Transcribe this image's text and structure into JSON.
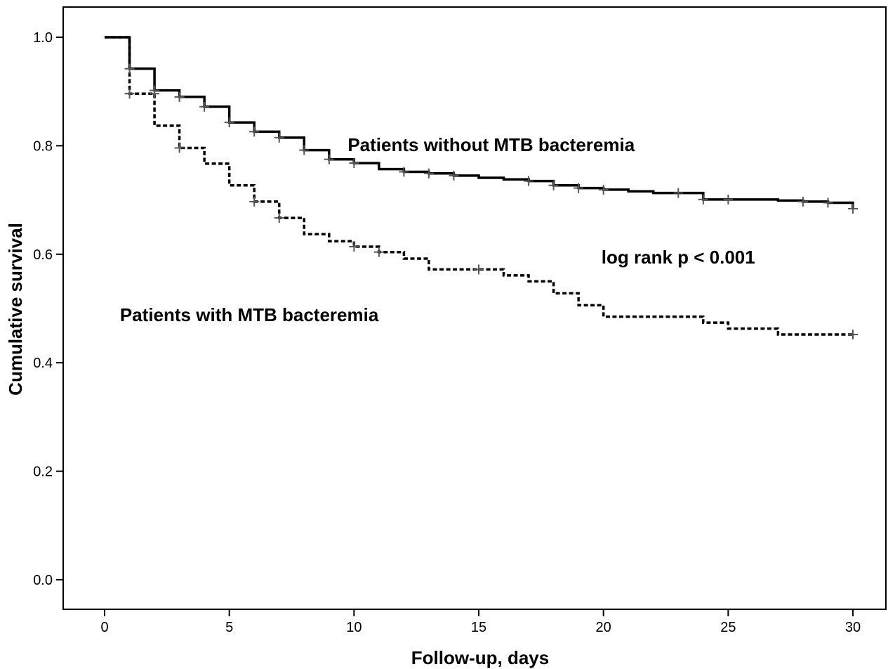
{
  "chart_data": {
    "type": "line",
    "subtype": "kaplan-meier-step",
    "title": "",
    "xlabel": "Follow-up, days",
    "ylabel": "Cumulative survival",
    "xlim": [
      0,
      30
    ],
    "ylim": [
      0.0,
      1.0
    ],
    "xticks": [
      "0",
      "5",
      "10",
      "15",
      "20",
      "25",
      "30"
    ],
    "yticks": [
      "0.0",
      "0.2",
      "0.4",
      "0.6",
      "0.8",
      "1.0"
    ],
    "grid": false,
    "legend": "none",
    "series": [
      {
        "label": "Patients without MTB bacteremia",
        "line_style": "solid",
        "color": "#000000",
        "steps": [
          {
            "x": 0,
            "y": 1.0
          },
          {
            "x": 1,
            "y": 0.942
          },
          {
            "x": 2,
            "y": 0.902
          },
          {
            "x": 3,
            "y": 0.89
          },
          {
            "x": 4,
            "y": 0.872
          },
          {
            "x": 5,
            "y": 0.843
          },
          {
            "x": 6,
            "y": 0.826
          },
          {
            "x": 7,
            "y": 0.815
          },
          {
            "x": 8,
            "y": 0.792
          },
          {
            "x": 9,
            "y": 0.775
          },
          {
            "x": 10,
            "y": 0.768
          },
          {
            "x": 11,
            "y": 0.757
          },
          {
            "x": 12,
            "y": 0.752
          },
          {
            "x": 13,
            "y": 0.749
          },
          {
            "x": 14,
            "y": 0.745
          },
          {
            "x": 15,
            "y": 0.741
          },
          {
            "x": 16,
            "y": 0.738
          },
          {
            "x": 17,
            "y": 0.735
          },
          {
            "x": 18,
            "y": 0.727
          },
          {
            "x": 19,
            "y": 0.722
          },
          {
            "x": 20,
            "y": 0.719
          },
          {
            "x": 21,
            "y": 0.716
          },
          {
            "x": 22,
            "y": 0.713
          },
          {
            "x": 24,
            "y": 0.701
          },
          {
            "x": 27,
            "y": 0.699
          },
          {
            "x": 28,
            "y": 0.697
          },
          {
            "x": 29,
            "y": 0.695
          },
          {
            "x": 30,
            "y": 0.684
          }
        ],
        "censored": [
          {
            "x": 1,
            "y": 0.942
          },
          {
            "x": 2,
            "y": 0.902
          },
          {
            "x": 3,
            "y": 0.89
          },
          {
            "x": 4,
            "y": 0.872
          },
          {
            "x": 5,
            "y": 0.843
          },
          {
            "x": 6,
            "y": 0.826
          },
          {
            "x": 7,
            "y": 0.815
          },
          {
            "x": 8,
            "y": 0.792
          },
          {
            "x": 9,
            "y": 0.775
          },
          {
            "x": 10,
            "y": 0.768
          },
          {
            "x": 12,
            "y": 0.752
          },
          {
            "x": 13,
            "y": 0.749
          },
          {
            "x": 14,
            "y": 0.745
          },
          {
            "x": 17,
            "y": 0.735
          },
          {
            "x": 18,
            "y": 0.727
          },
          {
            "x": 19,
            "y": 0.722
          },
          {
            "x": 20,
            "y": 0.719
          },
          {
            "x": 23,
            "y": 0.713
          },
          {
            "x": 24,
            "y": 0.701
          },
          {
            "x": 25,
            "y": 0.701
          },
          {
            "x": 28,
            "y": 0.697
          },
          {
            "x": 29,
            "y": 0.695
          },
          {
            "x": 30,
            "y": 0.684
          }
        ]
      },
      {
        "label": "Patients with MTB bacteremia",
        "line_style": "dashed",
        "color": "#000000",
        "steps": [
          {
            "x": 0,
            "y": 1.0
          },
          {
            "x": 1,
            "y": 0.896
          },
          {
            "x": 2,
            "y": 0.837
          },
          {
            "x": 3,
            "y": 0.796
          },
          {
            "x": 4,
            "y": 0.767
          },
          {
            "x": 5,
            "y": 0.727
          },
          {
            "x": 6,
            "y": 0.697
          },
          {
            "x": 7,
            "y": 0.667
          },
          {
            "x": 8,
            "y": 0.637
          },
          {
            "x": 9,
            "y": 0.624
          },
          {
            "x": 10,
            "y": 0.614
          },
          {
            "x": 11,
            "y": 0.604
          },
          {
            "x": 12,
            "y": 0.592
          },
          {
            "x": 13,
            "y": 0.572
          },
          {
            "x": 16,
            "y": 0.561
          },
          {
            "x": 17,
            "y": 0.55
          },
          {
            "x": 18,
            "y": 0.528
          },
          {
            "x": 19,
            "y": 0.506
          },
          {
            "x": 20,
            "y": 0.485
          },
          {
            "x": 24,
            "y": 0.474
          },
          {
            "x": 25,
            "y": 0.463
          },
          {
            "x": 27,
            "y": 0.452
          },
          {
            "x": 30,
            "y": 0.452
          }
        ],
        "censored": [
          {
            "x": 1,
            "y": 0.896
          },
          {
            "x": 2,
            "y": 0.896
          },
          {
            "x": 3,
            "y": 0.796
          },
          {
            "x": 6,
            "y": 0.697
          },
          {
            "x": 7,
            "y": 0.667
          },
          {
            "x": 10,
            "y": 0.614
          },
          {
            "x": 11,
            "y": 0.604
          },
          {
            "x": 15,
            "y": 0.572
          },
          {
            "x": 30,
            "y": 0.452
          }
        ]
      }
    ],
    "annotations": [
      {
        "text": "Patients without MTB bacteremia",
        "x": 15.5,
        "y": 0.79
      },
      {
        "text": "log rank p < 0.001",
        "x": 23,
        "y": 0.583
      },
      {
        "text": "Patients with MTB bacteremia",
        "x": 5.8,
        "y": 0.477
      }
    ]
  }
}
